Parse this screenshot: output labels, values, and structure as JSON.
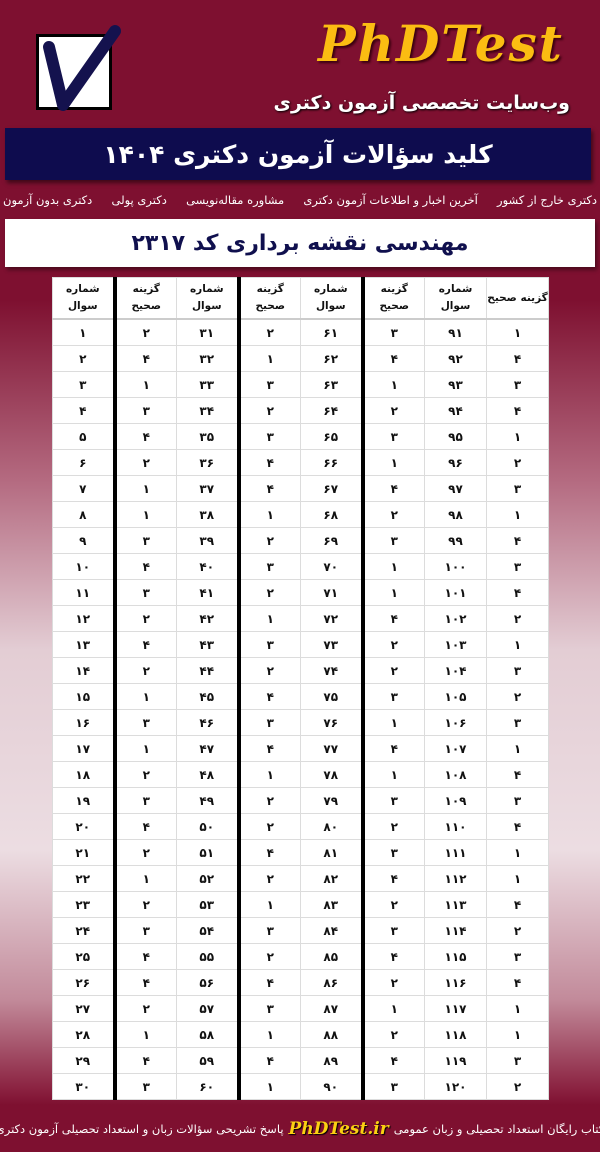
{
  "header": {
    "brand": "PhDTest",
    "tagline": "وب‌سایت تخصصی آزمون دکتری",
    "title": "کلید سؤالات آزمون دکتری ۱۴۰۴"
  },
  "nav": {
    "items": [
      "دکتری بدون آزمون",
      "دکتری پولی",
      "مشاوره مقاله‌نویسی",
      "آخرین اخبار و اطلاعات آزمون دکتری",
      "دکتری خارج از کشور"
    ]
  },
  "subject": "مهندسی نقشه برداری کد ۲۳۱۷",
  "table": {
    "headers": {
      "question": "شماره سوال",
      "answer": "گزینه صحیح"
    },
    "groups": [
      {
        "questions": [
          "۱",
          "۲",
          "۳",
          "۴",
          "۵",
          "۶",
          "۷",
          "۸",
          "۹",
          "۱۰",
          "۱۱",
          "۱۲",
          "۱۳",
          "۱۴",
          "۱۵",
          "۱۶",
          "۱۷",
          "۱۸",
          "۱۹",
          "۲۰",
          "۲۱",
          "۲۲",
          "۲۳",
          "۲۴",
          "۲۵",
          "۲۶",
          "۲۷",
          "۲۸",
          "۲۹",
          "۳۰"
        ],
        "answers": [
          "۲",
          "۴",
          "۱",
          "۳",
          "۴",
          "۲",
          "۱",
          "۱",
          "۳",
          "۴",
          "۳",
          "۲",
          "۴",
          "۲",
          "۱",
          "۳",
          "۱",
          "۲",
          "۳",
          "۴",
          "۲",
          "۱",
          "۲",
          "۳",
          "۴",
          "۴",
          "۲",
          "۱",
          "۴",
          "۳"
        ]
      },
      {
        "questions": [
          "۳۱",
          "۳۲",
          "۳۳",
          "۳۴",
          "۳۵",
          "۳۶",
          "۳۷",
          "۳۸",
          "۳۹",
          "۴۰",
          "۴۱",
          "۴۲",
          "۴۳",
          "۴۴",
          "۴۵",
          "۴۶",
          "۴۷",
          "۴۸",
          "۴۹",
          "۵۰",
          "۵۱",
          "۵۲",
          "۵۳",
          "۵۴",
          "۵۵",
          "۵۶",
          "۵۷",
          "۵۸",
          "۵۹",
          "۶۰"
        ],
        "answers": [
          "۲",
          "۱",
          "۳",
          "۲",
          "۳",
          "۴",
          "۴",
          "۱",
          "۲",
          "۳",
          "۲",
          "۱",
          "۳",
          "۲",
          "۴",
          "۳",
          "۴",
          "۱",
          "۲",
          "۲",
          "۴",
          "۲",
          "۱",
          "۳",
          "۲",
          "۴",
          "۳",
          "۱",
          "۴",
          "۱"
        ]
      },
      {
        "questions": [
          "۶۱",
          "۶۲",
          "۶۳",
          "۶۴",
          "۶۵",
          "۶۶",
          "۶۷",
          "۶۸",
          "۶۹",
          "۷۰",
          "۷۱",
          "۷۲",
          "۷۳",
          "۷۴",
          "۷۵",
          "۷۶",
          "۷۷",
          "۷۸",
          "۷۹",
          "۸۰",
          "۸۱",
          "۸۲",
          "۸۳",
          "۸۴",
          "۸۵",
          "۸۶",
          "۸۷",
          "۸۸",
          "۸۹",
          "۹۰"
        ],
        "answers": [
          "۳",
          "۴",
          "۱",
          "۲",
          "۳",
          "۱",
          "۴",
          "۲",
          "۳",
          "۱",
          "۱",
          "۴",
          "۲",
          "۲",
          "۳",
          "۱",
          "۴",
          "۱",
          "۳",
          "۲",
          "۳",
          "۴",
          "۲",
          "۳",
          "۴",
          "۲",
          "۱",
          "۲",
          "۴",
          "۳"
        ]
      },
      {
        "questions": [
          "۹۱",
          "۹۲",
          "۹۳",
          "۹۴",
          "۹۵",
          "۹۶",
          "۹۷",
          "۹۸",
          "۹۹",
          "۱۰۰",
          "۱۰۱",
          "۱۰۲",
          "۱۰۳",
          "۱۰۴",
          "۱۰۵",
          "۱۰۶",
          "۱۰۷",
          "۱۰۸",
          "۱۰۹",
          "۱۱۰",
          "۱۱۱",
          "۱۱۲",
          "۱۱۳",
          "۱۱۴",
          "۱۱۵",
          "۱۱۶",
          "۱۱۷",
          "۱۱۸",
          "۱۱۹",
          "۱۲۰"
        ],
        "answers": [
          "۱",
          "۴",
          "۳",
          "۴",
          "۱",
          "۲",
          "۳",
          "۱",
          "۴",
          "۳",
          "۴",
          "۲",
          "۱",
          "۳",
          "۲",
          "۳",
          "۱",
          "۴",
          "۳",
          "۴",
          "۱",
          "۱",
          "۴",
          "۲",
          "۳",
          "۴",
          "۱",
          "۱",
          "۳",
          "۲"
        ]
      }
    ]
  },
  "footer": {
    "left_text": "پاسخ تشریحی سؤالات زبان و استعداد تحصیلی آزمون دکتری",
    "site": "PhDTest.ir",
    "right_text": "کتاب رایگان استعداد تحصیلی و زبان عمومی"
  },
  "colors": {
    "background": "#7e1030",
    "brand": "#fbbd12",
    "title_bar": "#0e0c4e",
    "subject_text": "#10104e"
  },
  "icons": {
    "logo": "checkbox-checkmark-icon"
  }
}
